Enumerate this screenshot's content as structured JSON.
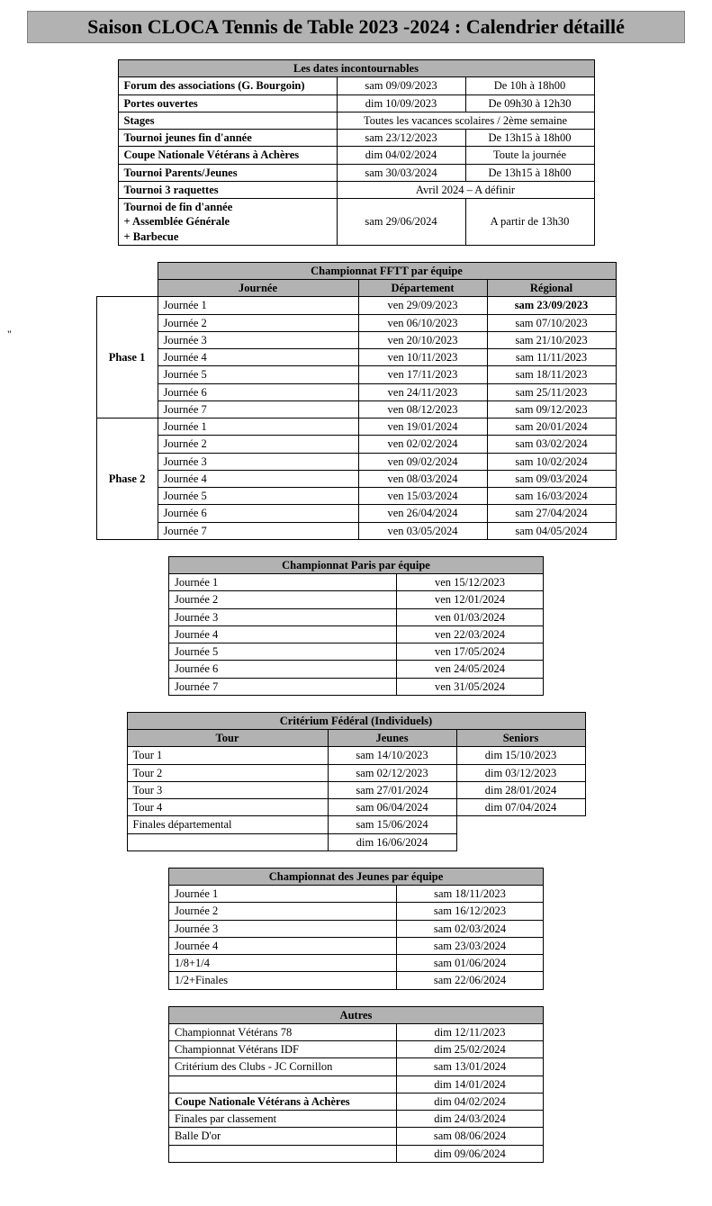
{
  "title": "Saison CLOCA Tennis de Table 2023 -2024 : Calendrier détaillé",
  "incontournables": {
    "header": "Les dates incontournables",
    "rows": [
      {
        "event": "Forum des associations (G. Bourgoin)",
        "date": "sam 09/09/2023",
        "time": "De 10h à 18h00",
        "bold": true
      },
      {
        "event": "Portes ouvertes",
        "date": "dim 10/09/2023",
        "time": "De 09h30 à 12h30",
        "bold": true
      },
      {
        "event": "Stages",
        "span": "Toutes les vacances scolaires / 2ème semaine",
        "bold": true
      },
      {
        "event": "Tournoi jeunes fin d'année",
        "date": "sam 23/12/2023",
        "time": "De 13h15 à 18h00",
        "bold": true
      },
      {
        "event": "Coupe Nationale Vétérans à Achères",
        "date": "dim 04/02/2024",
        "time": "Toute la journée",
        "bold": true
      },
      {
        "event": "Tournoi Parents/Jeunes",
        "date": "sam 30/03/2024",
        "time": "De 13h15 à 18h00",
        "bold": true
      },
      {
        "event": "Tournoi 3 raquettes",
        "span": "Avril 2024 – A définir",
        "bold": true
      },
      {
        "event": "Tournoi de fin d'année\n+ Assemblée Générale\n+ Barbecue",
        "date": "sam 29/06/2024",
        "time": "A partir de 13h30",
        "bold": true,
        "multiline": true
      }
    ]
  },
  "fftt": {
    "header": "Championnat FFTT par équipe",
    "sub": {
      "journee": "Journée",
      "dept": "Département",
      "reg": "Régional"
    },
    "phases": [
      {
        "label": "Phase 1",
        "rows": [
          {
            "j": "Journée 1",
            "d": "ven 29/09/2023",
            "r": "sam 23/09/2023",
            "r_bold": true
          },
          {
            "j": "Journée 2",
            "d": "ven 06/10/2023",
            "r": "sam 07/10/2023"
          },
          {
            "j": "Journée 3",
            "d": "ven 20/10/2023",
            "r": "sam 21/10/2023"
          },
          {
            "j": "Journée 4",
            "d": "ven 10/11/2023",
            "r": "sam 11/11/2023"
          },
          {
            "j": "Journée 5",
            "d": "ven 17/11/2023",
            "r": "sam 18/11/2023"
          },
          {
            "j": "Journée 6",
            "d": "ven 24/11/2023",
            "r": "sam 25/11/2023"
          },
          {
            "j": "Journée 7",
            "d": "ven 08/12/2023",
            "r": "sam 09/12/2023"
          }
        ]
      },
      {
        "label": "Phase 2",
        "rows": [
          {
            "j": "Journée 1",
            "d": "ven 19/01/2024",
            "r": "sam 20/01/2024"
          },
          {
            "j": "Journée 2",
            "d": "ven 02/02/2024",
            "r": "sam 03/02/2024"
          },
          {
            "j": "Journée 3",
            "d": "ven 09/02/2024",
            "r": "sam 10/02/2024"
          },
          {
            "j": "Journée 4",
            "d": "ven 08/03/2024",
            "r": "sam 09/03/2024"
          },
          {
            "j": "Journée 5",
            "d": "ven 15/03/2024",
            "r": "sam 16/03/2024"
          },
          {
            "j": "Journée 6",
            "d": "ven 26/04/2024",
            "r": "sam 27/04/2024"
          },
          {
            "j": "Journée 7",
            "d": "ven 03/05/2024",
            "r": "sam 04/05/2024"
          }
        ]
      }
    ]
  },
  "paris": {
    "header": "Championnat Paris par équipe",
    "rows": [
      {
        "j": "Journée 1",
        "d": "ven 15/12/2023"
      },
      {
        "j": "Journée 2",
        "d": "ven 12/01/2024"
      },
      {
        "j": "Journée 3",
        "d": "ven 01/03/2024"
      },
      {
        "j": "Journée 4",
        "d": "ven 22/03/2024"
      },
      {
        "j": "Journée 5",
        "d": "ven 17/05/2024"
      },
      {
        "j": "Journée 6",
        "d": "ven 24/05/2024"
      },
      {
        "j": "Journée 7",
        "d": "ven 31/05/2024"
      }
    ]
  },
  "criterium": {
    "header": "Critérium Fédéral (Individuels)",
    "sub": {
      "tour": "Tour",
      "jeunes": "Jeunes",
      "seniors": "Seniors"
    },
    "rows": [
      {
        "t": "Tour 1",
        "j": "sam 14/10/2023",
        "s": "dim 15/10/2023"
      },
      {
        "t": "Tour 2",
        "j": "sam 02/12/2023",
        "s": "dim 03/12/2023"
      },
      {
        "t": "Tour 3",
        "j": "sam 27/01/2024",
        "s": "dim 28/01/2024"
      },
      {
        "t": "Tour 4",
        "j": "sam 06/04/2024",
        "s": "dim 07/04/2024"
      }
    ],
    "finales": {
      "label": "Finales départemental",
      "d1": "sam 15/06/2024",
      "d2": "dim 16/06/2024"
    }
  },
  "jeunes": {
    "header": "Championnat des Jeunes par équipe",
    "rows": [
      {
        "l": "Journée 1",
        "d": "sam 18/11/2023"
      },
      {
        "l": "Journée 2",
        "d": "sam 16/12/2023"
      },
      {
        "l": "Journée 3",
        "d": "sam 02/03/2024"
      },
      {
        "l": "Journée 4",
        "d": "sam 23/03/2024"
      },
      {
        "l": "1/8+1/4",
        "d": "sam 01/06/2024"
      },
      {
        "l": "1/2+Finales",
        "d": "sam 22/06/2024"
      }
    ]
  },
  "autres": {
    "header": "Autres",
    "rows": [
      {
        "l": "Championnat  Vétérans 78",
        "d": "dim 12/11/2023"
      },
      {
        "l": "Championnat  Vétérans IDF",
        "d": "dim 25/02/2024"
      },
      {
        "l": "Critérium des Clubs - JC Cornillon",
        "d": "sam 13/01/2024",
        "extra_d": "dim 14/01/2024"
      },
      {
        "l": "Coupe Nationale Vétérans à Achères",
        "d": "dim 04/02/2024",
        "bold": true
      },
      {
        "l": "Finales par classement",
        "d": "dim 24/03/2024"
      },
      {
        "l": "Balle D'or",
        "d": "sam 08/06/2024",
        "extra_d": "dim 09/06/2024"
      }
    ]
  },
  "colors": {
    "header_bg": "#b2b2b2",
    "border": "#000000",
    "text": "#000000",
    "page_bg": "#ffffff"
  }
}
